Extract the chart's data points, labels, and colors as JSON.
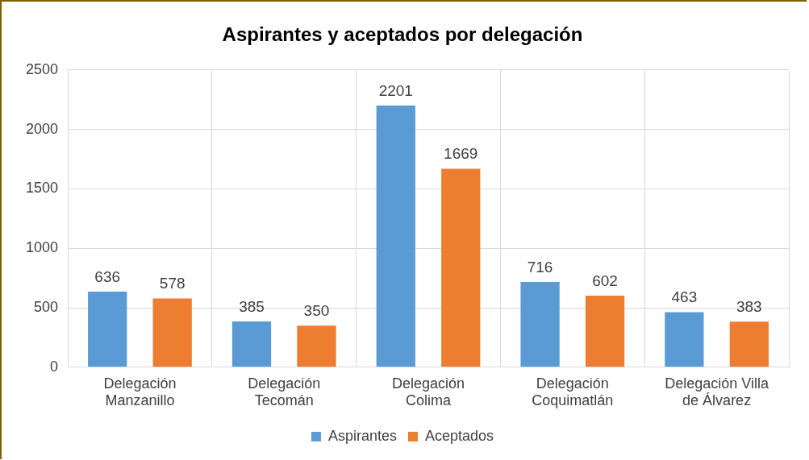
{
  "chart_data": {
    "type": "bar",
    "title": "Aspirantes y aceptados por delegación",
    "categories": [
      "Delegación Manzanillo",
      "Delegación Tecomán",
      "Delegación Colima",
      "Delegación Coquimatlán",
      "Delegación Villa de Álvarez"
    ],
    "series": [
      {
        "name": "Aspirantes",
        "color": "#5b9bd5",
        "values": [
          636,
          385,
          2201,
          716,
          463
        ]
      },
      {
        "name": "Aceptados",
        "color": "#ed7d31",
        "values": [
          578,
          350,
          1669,
          602,
          383
        ]
      }
    ],
    "ylim": [
      0,
      2500
    ],
    "yticks": [
      0,
      500,
      1000,
      1500,
      2000,
      2500
    ],
    "grid": true,
    "legend": "bottom",
    "data_labels": true
  }
}
